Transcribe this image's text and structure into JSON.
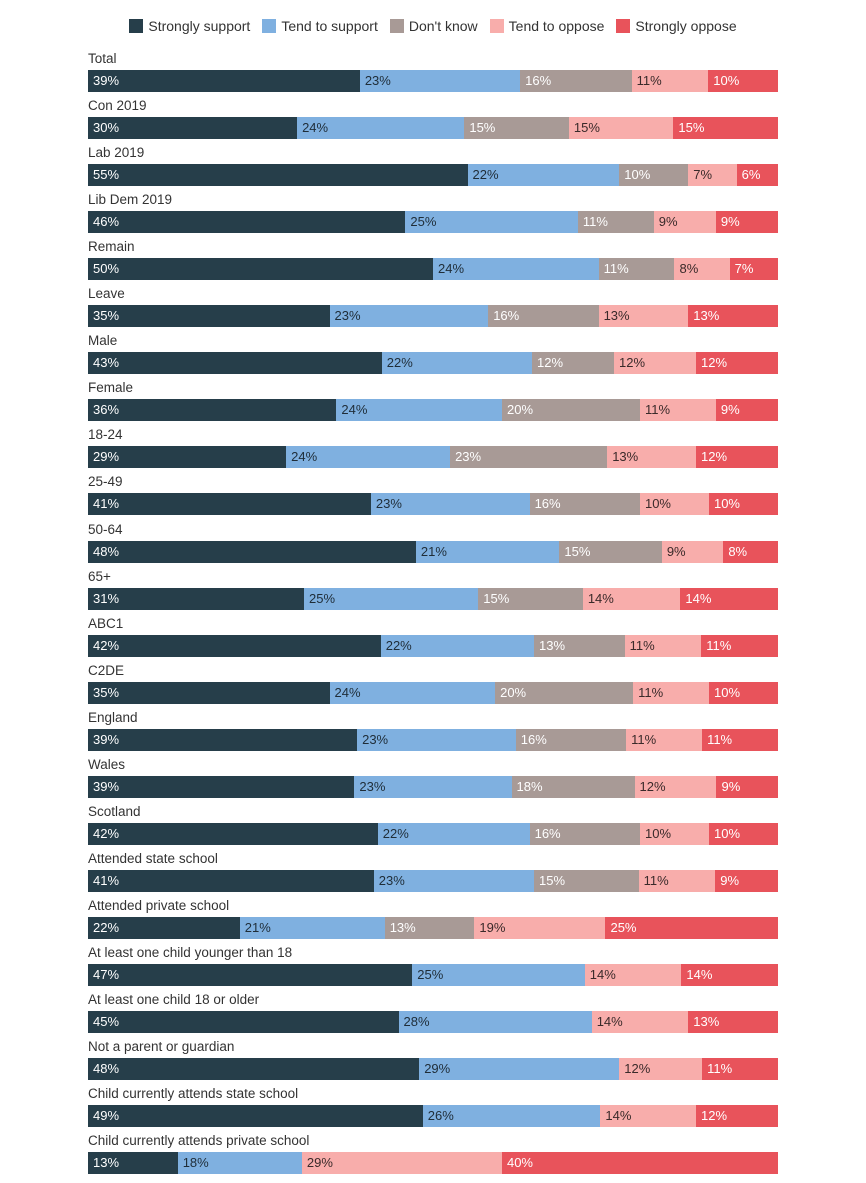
{
  "chart_data": {
    "type": "bar",
    "orientation": "horizontal",
    "stacked": true,
    "legend_position": "top",
    "series": [
      {
        "name": "Strongly support",
        "color": "#263e4a"
      },
      {
        "name": "Tend to support",
        "color": "#7fb0e0"
      },
      {
        "name": "Don't know",
        "color": "#a89a96"
      },
      {
        "name": "Tend to oppose",
        "color": "#f8adab"
      },
      {
        "name": "Strongly oppose",
        "color": "#e8535b"
      }
    ],
    "rows": [
      {
        "label": "Total",
        "values": [
          39,
          23,
          16,
          11,
          10
        ]
      },
      {
        "label": "Con 2019",
        "values": [
          30,
          24,
          15,
          15,
          15
        ]
      },
      {
        "label": "Lab 2019",
        "values": [
          55,
          22,
          10,
          7,
          6
        ]
      },
      {
        "label": "Lib Dem 2019",
        "values": [
          46,
          25,
          11,
          9,
          9
        ]
      },
      {
        "label": "Remain",
        "values": [
          50,
          24,
          11,
          8,
          7
        ]
      },
      {
        "label": "Leave",
        "values": [
          35,
          23,
          16,
          13,
          13
        ]
      },
      {
        "label": "Male",
        "values": [
          43,
          22,
          12,
          12,
          12
        ]
      },
      {
        "label": "Female",
        "values": [
          36,
          24,
          20,
          11,
          9
        ]
      },
      {
        "label": "18-24",
        "values": [
          29,
          24,
          23,
          13,
          12
        ]
      },
      {
        "label": "25-49",
        "values": [
          41,
          23,
          16,
          10,
          10
        ]
      },
      {
        "label": "50-64",
        "values": [
          48,
          21,
          15,
          9,
          8
        ]
      },
      {
        "label": "65+",
        "values": [
          31,
          25,
          15,
          14,
          14
        ]
      },
      {
        "label": "ABC1",
        "values": [
          42,
          22,
          13,
          11,
          11
        ]
      },
      {
        "label": "C2DE",
        "values": [
          35,
          24,
          20,
          11,
          10
        ]
      },
      {
        "label": "England",
        "values": [
          39,
          23,
          16,
          11,
          11
        ]
      },
      {
        "label": "Wales",
        "values": [
          39,
          23,
          18,
          12,
          9
        ]
      },
      {
        "label": "Scotland",
        "values": [
          42,
          22,
          16,
          10,
          10
        ]
      },
      {
        "label": "Attended state school",
        "values": [
          41,
          23,
          15,
          11,
          9
        ]
      },
      {
        "label": "Attended private school",
        "values": [
          22,
          21,
          13,
          19,
          25
        ]
      },
      {
        "label": "At least one child younger than 18",
        "values": [
          47,
          25,
          null,
          14,
          14
        ]
      },
      {
        "label": "At least one child 18 or older",
        "values": [
          45,
          28,
          null,
          14,
          13
        ]
      },
      {
        "label": "Not a parent or guardian",
        "values": [
          48,
          29,
          null,
          12,
          11
        ]
      },
      {
        "label": "Child currently attends state school",
        "values": [
          49,
          26,
          null,
          14,
          12
        ]
      },
      {
        "label": "Child currently attends private school",
        "values": [
          13,
          18,
          null,
          29,
          40
        ]
      }
    ]
  }
}
